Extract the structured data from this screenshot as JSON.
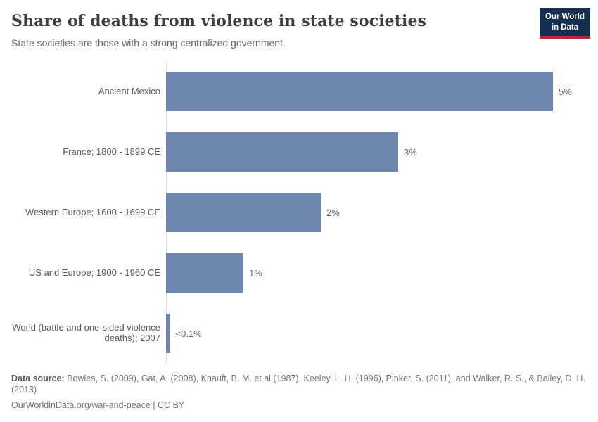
{
  "header": {
    "title": "Share of deaths from violence in state societies",
    "subtitle": "State societies are those with a strong centralized government.",
    "logo": {
      "line1": "Our World",
      "line2": "in Data"
    }
  },
  "chart_data": {
    "type": "bar",
    "orientation": "horizontal",
    "title": "Share of deaths from violence in state societies",
    "subtitle": "State societies are those with a strong centralized government.",
    "categories": [
      "Ancient Mexico",
      "France; 1800 - 1899 CE",
      "Western Europe; 1600 - 1699 CE",
      "US and Europe; 1900 - 1960 CE",
      "World (battle and one-sided violence deaths); 2007"
    ],
    "values": [
      5,
      3,
      2,
      1,
      0.05
    ],
    "value_labels": [
      "5%",
      "3%",
      "2%",
      "1%",
      "<0.1%"
    ],
    "unit": "%",
    "xlim": [
      0,
      5
    ],
    "grid": false,
    "legend": "none",
    "bar_color": "#6e87ae"
  },
  "colors": {
    "bar": "#6e87ae",
    "axis_line": "#e0e0e0",
    "title_text": "#3f3f3f",
    "label_text": "#5b5b5b",
    "footer_text": "#757575",
    "logo_bg": "#152d4e",
    "logo_red": "#bc2b32"
  },
  "footer": {
    "source_label": "Data source:",
    "source_text": "Bowles, S. (2009), Gat, A. (2008), Knauft, B. M. et al (1987), Keeley, L. H. (1996), Pinker, S. (2011), and Walker, R. S., & Bailey, D. H. (2013)",
    "license_line": "OurWorldinData.org/war-and-peace | CC BY"
  }
}
